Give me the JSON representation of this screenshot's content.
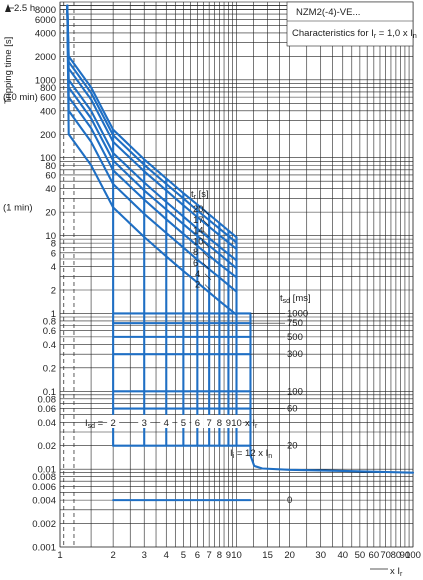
{
  "chart_data": {
    "type": "line",
    "title": "NZM2(-4)-VE...",
    "subtitle": "Characteristics for I",
    "subtitle_sub": "r",
    "subtitle_tail": " = 1,0 x I",
    "subtitle_tail_sub": "n",
    "ylabel": "Tripping time [s]",
    "y_top_marker": "2.5 h",
    "y_annotations": [
      {
        "y": 600,
        "text": "(10 min)"
      },
      {
        "y": 60,
        "text": "(1 min)"
      }
    ],
    "xlabel": "x I",
    "xlabel_sub": "r",
    "x_scale": "log",
    "y_scale": "log",
    "xlim": [
      1,
      100
    ],
    "ylim": [
      0.001,
      10000
    ],
    "x_ticks": [
      {
        "v": 1,
        "t": "1"
      },
      {
        "v": 2,
        "t": "2"
      },
      {
        "v": 3,
        "t": "3"
      },
      {
        "v": 4,
        "t": "4"
      },
      {
        "v": 5,
        "t": "5"
      },
      {
        "v": 6,
        "t": "6"
      },
      {
        "v": 7,
        "t": "7"
      },
      {
        "v": 8,
        "t": "8"
      },
      {
        "v": 9,
        "t": "9"
      },
      {
        "v": 10,
        "t": "10"
      },
      {
        "v": 15,
        "t": "15"
      },
      {
        "v": 20,
        "t": "20"
      },
      {
        "v": 30,
        "t": "30"
      },
      {
        "v": 40,
        "t": "40"
      },
      {
        "v": 50,
        "t": "50"
      },
      {
        "v": 60,
        "t": "60"
      },
      {
        "v": 70,
        "t": "70"
      },
      {
        "v": 80,
        "t": "80"
      },
      {
        "v": 90,
        "t": "90"
      },
      {
        "v": 100,
        "t": "100"
      }
    ],
    "x_minor": [
      1.5,
      2.5,
      3.5,
      4.5,
      5.5,
      6.5,
      7.5,
      8.5,
      9.5,
      12.5,
      17.5,
      25,
      35,
      45,
      55,
      65,
      75,
      85,
      95
    ],
    "y_ticks": [
      {
        "v": 8000,
        "t": "8000"
      },
      {
        "v": 6000,
        "t": "6000"
      },
      {
        "v": 4000,
        "t": "4000"
      },
      {
        "v": 2000,
        "t": "2000"
      },
      {
        "v": 1000,
        "t": "1000"
      },
      {
        "v": 800,
        "t": "800"
      },
      {
        "v": 600,
        "t": "600"
      },
      {
        "v": 400,
        "t": "400"
      },
      {
        "v": 200,
        "t": "200"
      },
      {
        "v": 100,
        "t": "100"
      },
      {
        "v": 80,
        "t": "80"
      },
      {
        "v": 60,
        "t": "60"
      },
      {
        "v": 40,
        "t": "40"
      },
      {
        "v": 20,
        "t": "20"
      },
      {
        "v": 10,
        "t": "10"
      },
      {
        "v": 8,
        "t": "8"
      },
      {
        "v": 6,
        "t": "6"
      },
      {
        "v": 4,
        "t": "4"
      },
      {
        "v": 2,
        "t": "2"
      },
      {
        "v": 1,
        "t": "1"
      },
      {
        "v": 0.8,
        "t": "0.8"
      },
      {
        "v": 0.6,
        "t": "0.6"
      },
      {
        "v": 0.4,
        "t": "0.4"
      },
      {
        "v": 0.2,
        "t": "0.2"
      },
      {
        "v": 0.1,
        "t": "0.1"
      },
      {
        "v": 0.08,
        "t": "0.08"
      },
      {
        "v": 0.06,
        "t": "0.06"
      },
      {
        "v": 0.04,
        "t": "0.04"
      },
      {
        "v": 0.02,
        "t": "0.02"
      },
      {
        "v": 0.01,
        "t": "0.01"
      },
      {
        "v": 0.008,
        "t": "0.008"
      },
      {
        "v": 0.006,
        "t": "0.006"
      },
      {
        "v": 0.004,
        "t": "0.004"
      },
      {
        "v": 0.002,
        "t": "0.002"
      },
      {
        "v": 0.001,
        "t": "0.001"
      }
    ],
    "tr_header": "t",
    "tr_header_sub": "r",
    "tr_header_tail": " [s]",
    "tr_values": [
      20,
      17,
      14,
      10,
      8,
      6,
      4,
      2
    ],
    "tsd_header": "t",
    "tsd_header_sub": "sd",
    "tsd_header_tail": " [ms]",
    "tsd_values": [
      1000,
      750,
      500,
      300,
      100,
      60,
      20,
      0
    ],
    "tsd_levels_s": [
      1.0,
      0.75,
      0.5,
      0.3,
      0.1,
      0.06,
      0.02,
      0.004
    ],
    "isd_label": "I",
    "isd_label_sub": "sd",
    "isd_label_tail": " =",
    "isd_multiples": [
      "2",
      "3",
      "4",
      "5",
      "6",
      "7",
      "8",
      "9",
      "10"
    ],
    "isd_tail": "x I",
    "isd_tail_sub": "r",
    "isd_values": [
      2,
      3,
      4,
      5,
      6,
      7,
      8,
      9,
      10
    ],
    "ii_label": "I",
    "ii_label_sub": "i",
    "ii_label_tail": " = 12 x I",
    "ii_label_tail_sub": "n",
    "ii_multiple": 12,
    "instantaneous_time_s": 0.009,
    "series": [
      {
        "values": [
          [
            1.1,
            9000
          ],
          [
            1.12,
            2000
          ],
          [
            1.5,
            800
          ],
          [
            2,
            230
          ],
          [
            3,
            95
          ],
          [
            4,
            54
          ],
          [
            5,
            35
          ],
          [
            6,
            25
          ],
          [
            8,
            14.5
          ],
          [
            10,
            9.5
          ]
        ]
      },
      {
        "values": [
          [
            1.1,
            9000
          ],
          [
            1.12,
            1700
          ],
          [
            1.5,
            680
          ],
          [
            2,
            195
          ],
          [
            3,
            81
          ],
          [
            4,
            46
          ],
          [
            5,
            30
          ],
          [
            6,
            21
          ],
          [
            8,
            12.3
          ],
          [
            10,
            8.1
          ]
        ]
      },
      {
        "values": [
          [
            1.1,
            9000
          ],
          [
            1.12,
            1400
          ],
          [
            1.5,
            560
          ],
          [
            2,
            160
          ],
          [
            3,
            67
          ],
          [
            4,
            38
          ],
          [
            5,
            24.5
          ],
          [
            6,
            17.3
          ],
          [
            8,
            10.1
          ],
          [
            10,
            6.7
          ]
        ]
      },
      {
        "values": [
          [
            1.1,
            9000
          ],
          [
            1.12,
            1000
          ],
          [
            1.5,
            400
          ],
          [
            2,
            115
          ],
          [
            3,
            48
          ],
          [
            4,
            27
          ],
          [
            5,
            17.5
          ],
          [
            6,
            12.3
          ],
          [
            8,
            7.2
          ],
          [
            10,
            4.8
          ]
        ]
      },
      {
        "values": [
          [
            1.1,
            9000
          ],
          [
            1.12,
            800
          ],
          [
            1.5,
            320
          ],
          [
            2,
            92
          ],
          [
            3,
            38
          ],
          [
            4,
            21.6
          ],
          [
            5,
            14
          ],
          [
            6,
            9.9
          ],
          [
            8,
            5.8
          ],
          [
            10,
            3.8
          ]
        ]
      },
      {
        "values": [
          [
            1.1,
            9000
          ],
          [
            1.12,
            600
          ],
          [
            1.5,
            240
          ],
          [
            2,
            69
          ],
          [
            3,
            29
          ],
          [
            4,
            16.2
          ],
          [
            5,
            10.5
          ],
          [
            6,
            7.4
          ],
          [
            8,
            4.3
          ],
          [
            10,
            2.9
          ]
        ]
      },
      {
        "values": [
          [
            1.1,
            9000
          ],
          [
            1.12,
            400
          ],
          [
            1.5,
            160
          ],
          [
            2,
            46
          ],
          [
            3,
            19
          ],
          [
            4,
            10.8
          ],
          [
            5,
            7
          ],
          [
            6,
            4.9
          ],
          [
            8,
            2.9
          ],
          [
            10,
            1.9
          ]
        ]
      },
      {
        "values": [
          [
            1.1,
            9000
          ],
          [
            1.12,
            200
          ],
          [
            1.5,
            80
          ],
          [
            2,
            23
          ],
          [
            3,
            9.6
          ],
          [
            4,
            5.4
          ],
          [
            5,
            3.5
          ],
          [
            6,
            2.5
          ],
          [
            8,
            1.45
          ],
          [
            10,
            0.96
          ]
        ]
      }
    ]
  }
}
